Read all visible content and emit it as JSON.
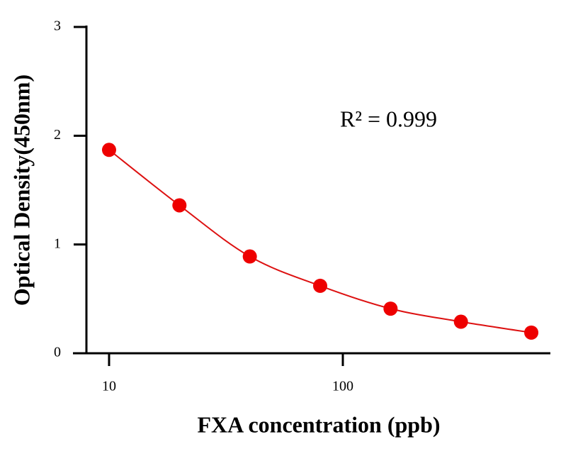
{
  "chart_data": {
    "type": "scatter",
    "x_label": "FXA concentration (ppb)",
    "y_label": "Optical Density(450nm)",
    "annotation": "R² = 0.999",
    "x": [
      10,
      20,
      40,
      80,
      160,
      320,
      640
    ],
    "values": [
      1.87,
      1.36,
      0.89,
      0.62,
      0.41,
      0.29,
      0.19
    ],
    "color": "#ee0000",
    "line_color": "#dd1111",
    "x_log": true,
    "xlim": [
      8,
      767
    ],
    "xticks": [
      10,
      100
    ],
    "ylim": [
      0,
      3
    ],
    "yticks": [
      0,
      1,
      2,
      3
    ],
    "grid": false
  }
}
